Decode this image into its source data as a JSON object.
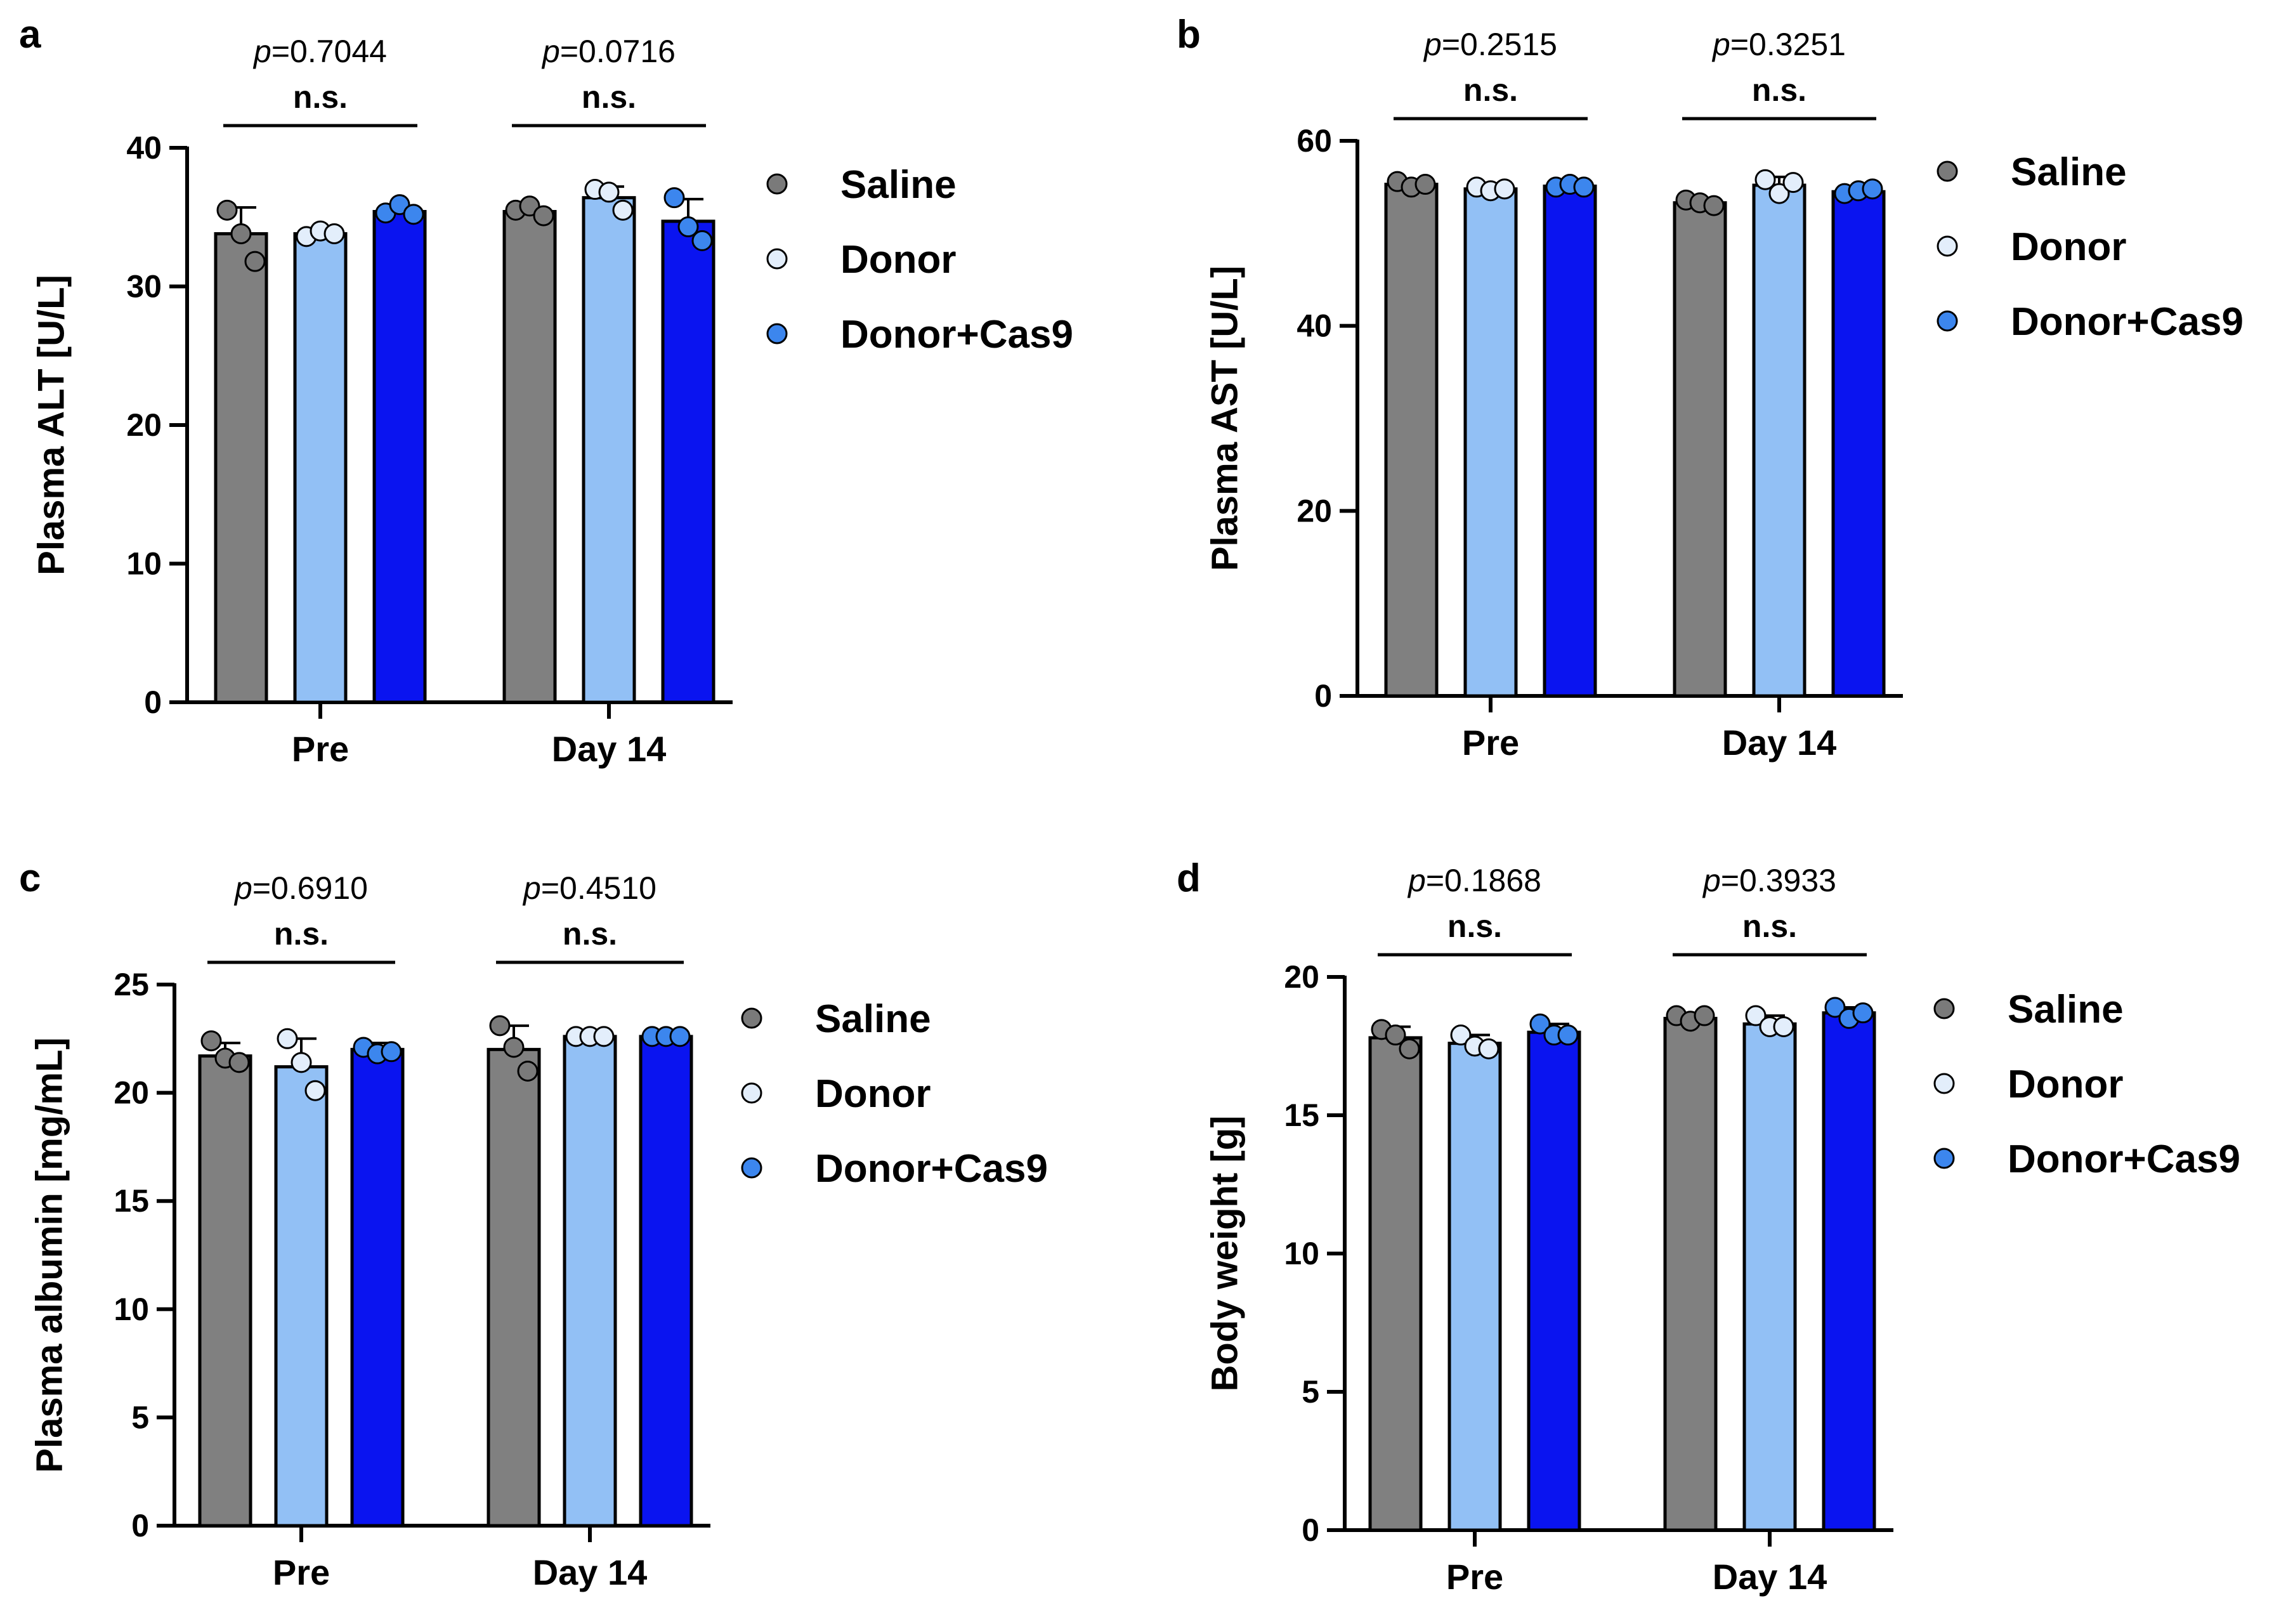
{
  "figure": {
    "series_colors": {
      "Saline": "#808080",
      "Donor": "#92c0f5",
      "Donor+Cas9": "#0a14f0"
    },
    "point_colors": {
      "Saline": "#7a7a7a",
      "Donor": "#e3eefb",
      "Donor+Cas9": "#3c86ee"
    }
  },
  "chart_data": [
    {
      "panel": "a",
      "type": "bar",
      "title": "",
      "xlabel": "",
      "ylabel": "Plasma ALT [U/L]",
      "ylim": [
        0,
        40
      ],
      "yticks": [
        0,
        10,
        20,
        30,
        40
      ],
      "categories": [
        "Pre",
        "Day 14"
      ],
      "series": [
        {
          "name": "Saline",
          "values": [
            33.8,
            35.4
          ],
          "sd": [
            1.9,
            0.3
          ],
          "points": [
            [
              35.5,
              33.8,
              31.8
            ],
            [
              35.5,
              35.8,
              35.1
            ]
          ]
        },
        {
          "name": "Donor",
          "values": [
            33.8,
            36.4
          ],
          "sd": [
            0.4,
            0.8
          ],
          "points": [
            [
              33.6,
              34.0,
              33.8
            ],
            [
              37.0,
              36.8,
              35.5
            ]
          ]
        },
        {
          "name": "Donor+Cas9",
          "values": [
            35.4,
            34.7
          ],
          "sd": [
            0.3,
            1.6
          ],
          "points": [
            [
              35.3,
              35.9,
              35.2
            ],
            [
              36.4,
              34.3,
              33.3
            ]
          ]
        }
      ],
      "annotations": [
        {
          "category": "Pre",
          "p_prefix": "p",
          "p_value": "=0.7044",
          "significance": "n.s."
        },
        {
          "category": "Day 14",
          "p_prefix": "p",
          "p_value": "=0.0716",
          "significance": "n.s."
        }
      ]
    },
    {
      "panel": "b",
      "type": "bar",
      "title": "",
      "xlabel": "",
      "ylabel": "Plasma AST [U/L]",
      "ylim": [
        0,
        60
      ],
      "yticks": [
        0,
        20,
        40,
        60
      ],
      "categories": [
        "Pre",
        "Day 14"
      ],
      "series": [
        {
          "name": "Saline",
          "values": [
            55.3,
            53.3
          ],
          "sd": [
            0.5,
            0.4
          ],
          "points": [
            [
              55.6,
              55.0,
              55.3
            ],
            [
              53.6,
              53.3,
              53.0
            ]
          ]
        },
        {
          "name": "Donor",
          "values": [
            54.8,
            55.2
          ],
          "sd": [
            0.5,
            0.9
          ],
          "points": [
            [
              55.0,
              54.6,
              54.8
            ],
            [
              55.8,
              54.3,
              55.5
            ]
          ]
        },
        {
          "name": "Donor+Cas9",
          "values": [
            55.1,
            54.5
          ],
          "sd": [
            0.4,
            0.3
          ],
          "points": [
            [
              55.0,
              55.3,
              55.0
            ],
            [
              54.3,
              54.6,
              54.8
            ]
          ]
        }
      ],
      "annotations": [
        {
          "category": "Pre",
          "p_prefix": "p",
          "p_value": "=0.2515",
          "significance": "n.s."
        },
        {
          "category": "Day 14",
          "p_prefix": "p",
          "p_value": "=0.3251",
          "significance": "n.s."
        }
      ]
    },
    {
      "panel": "c",
      "type": "bar",
      "title": "",
      "xlabel": "",
      "ylabel": "Plasma albumin [mg/mL]",
      "ylim": [
        0,
        25
      ],
      "yticks": [
        0,
        5,
        10,
        15,
        20,
        25
      ],
      "categories": [
        "Pre",
        "Day 14"
      ],
      "series": [
        {
          "name": "Saline",
          "values": [
            21.7,
            22.0
          ],
          "sd": [
            0.6,
            1.1
          ],
          "points": [
            [
              22.4,
              21.6,
              21.4
            ],
            [
              23.1,
              22.1,
              21.0
            ]
          ]
        },
        {
          "name": "Donor",
          "values": [
            21.2,
            22.6
          ],
          "sd": [
            1.3,
            0.1
          ],
          "points": [
            [
              22.5,
              21.4,
              20.1
            ],
            [
              22.6,
              22.6,
              22.6
            ]
          ]
        },
        {
          "name": "Donor+Cas9",
          "values": [
            22.0,
            22.6
          ],
          "sd": [
            0.3,
            0.1
          ],
          "points": [
            [
              22.1,
              21.8,
              21.9
            ],
            [
              22.6,
              22.6,
              22.6
            ]
          ]
        }
      ],
      "annotations": [
        {
          "category": "Pre",
          "p_prefix": "p",
          "p_value": "=0.6910",
          "significance": "n.s."
        },
        {
          "category": "Day 14",
          "p_prefix": "p",
          "p_value": "=0.4510",
          "significance": "n.s."
        }
      ]
    },
    {
      "panel": "d",
      "type": "bar",
      "title": "",
      "xlabel": "",
      "ylabel": "Body weight [g]",
      "ylim": [
        0,
        20
      ],
      "yticks": [
        0,
        5,
        10,
        15,
        20
      ],
      "categories": [
        "Pre",
        "Day 14"
      ],
      "series": [
        {
          "name": "Saline",
          "values": [
            17.8,
            18.5
          ],
          "sd": [
            0.4,
            0.2
          ],
          "points": [
            [
              18.1,
              17.9,
              17.4
            ],
            [
              18.6,
              18.4,
              18.6
            ]
          ]
        },
        {
          "name": "Donor",
          "values": [
            17.6,
            18.3
          ],
          "sd": [
            0.3,
            0.3
          ],
          "points": [
            [
              17.9,
              17.5,
              17.4
            ],
            [
              18.6,
              18.2,
              18.2
            ]
          ]
        },
        {
          "name": "Donor+Cas9",
          "values": [
            18.0,
            18.7
          ],
          "sd": [
            0.3,
            0.2
          ],
          "points": [
            [
              18.3,
              17.9,
              17.9
            ],
            [
              18.9,
              18.5,
              18.7
            ]
          ]
        }
      ],
      "annotations": [
        {
          "category": "Pre",
          "p_prefix": "p",
          "p_value": "=0.1868",
          "significance": "n.s."
        },
        {
          "category": "Day 14",
          "p_prefix": "p",
          "p_value": "=0.3933",
          "significance": "n.s."
        }
      ]
    }
  ],
  "legend": {
    "items": [
      {
        "label": "Saline"
      },
      {
        "label": "Donor"
      },
      {
        "label": "Donor+Cas9"
      }
    ]
  }
}
